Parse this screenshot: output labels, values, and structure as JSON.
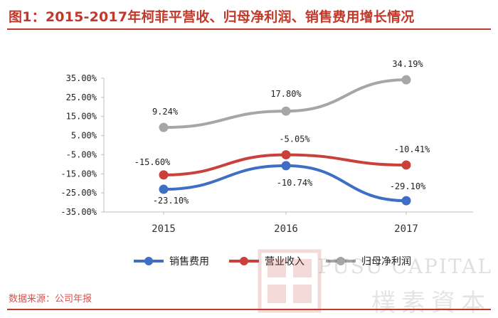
{
  "title": "图1：2015-2017年柯菲平营收、归母净利润、销售费用增长情况",
  "source": "数据来源：公司年报",
  "watermark": {
    "seal_text": "資樸本素",
    "latin": "PUSU CAPITAL",
    "cjk": "樸素資本"
  },
  "chart_data": {
    "type": "line",
    "title": "",
    "xlabel": "",
    "ylabel": "",
    "categories": [
      "2015",
      "2016",
      "2017"
    ],
    "ylim": [
      -35,
      35
    ],
    "yticks": [
      "35.00%",
      "25.00%",
      "15.00%",
      "5.00%",
      "-5.00%",
      "-15.00%",
      "-25.00%",
      "-35.00%"
    ],
    "ytick_values": [
      35,
      25,
      15,
      5,
      -5,
      -15,
      -25,
      -35
    ],
    "grid": false,
    "legend_position": "bottom",
    "series": [
      {
        "name": "销售费用",
        "values": [
          -23.1,
          -10.74,
          -29.1
        ],
        "labels": [
          "-23.10%",
          "-10.74%",
          "-29.10%"
        ],
        "color": "#3f6fc4"
      },
      {
        "name": "营业收入",
        "values": [
          -15.6,
          -5.05,
          -10.41
        ],
        "labels": [
          "-15.60%",
          "-5.05%",
          "-10.41%"
        ],
        "color": "#c9413a"
      },
      {
        "name": "归母净利润",
        "values": [
          9.24,
          17.8,
          34.19
        ],
        "labels": [
          "9.24%",
          "17.80%",
          "34.19%"
        ],
        "color": "#a6a6a6"
      }
    ]
  }
}
